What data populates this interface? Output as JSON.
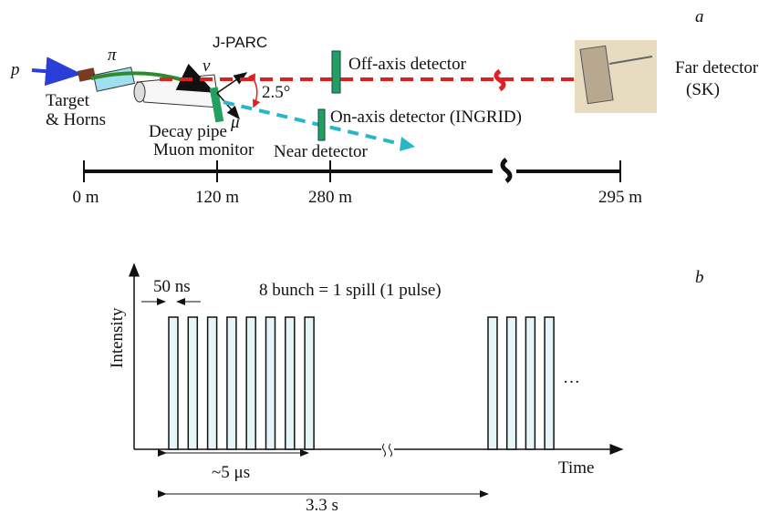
{
  "panel_a": {
    "label": "a",
    "p": "p",
    "pi": "π",
    "jparc": "J-PARC",
    "nu": "ν",
    "off_axis": "Off-axis detector",
    "far_detector": "Far detector",
    "sk": "(SK)",
    "target": "Target",
    "horns": "& Horns",
    "angle": "2.5°",
    "decay_pipe": "Decay pipe",
    "mu": "μ",
    "on_axis": "On-axis detector (INGRID)",
    "muon_monitor": "Muon monitor",
    "near_detector": "Near detector",
    "scale": [
      "0 m",
      "120 m",
      "280 m",
      "295 m"
    ]
  },
  "panel_b": {
    "label": "b",
    "bunch_width": "50 ns",
    "spill": "8 bunch = 1 spill (1 pulse)",
    "y_axis": "Intensity",
    "ellipsis": "···",
    "x_axis": "Time",
    "spill_length": "~5 μs",
    "period": "3.3 s"
  }
}
